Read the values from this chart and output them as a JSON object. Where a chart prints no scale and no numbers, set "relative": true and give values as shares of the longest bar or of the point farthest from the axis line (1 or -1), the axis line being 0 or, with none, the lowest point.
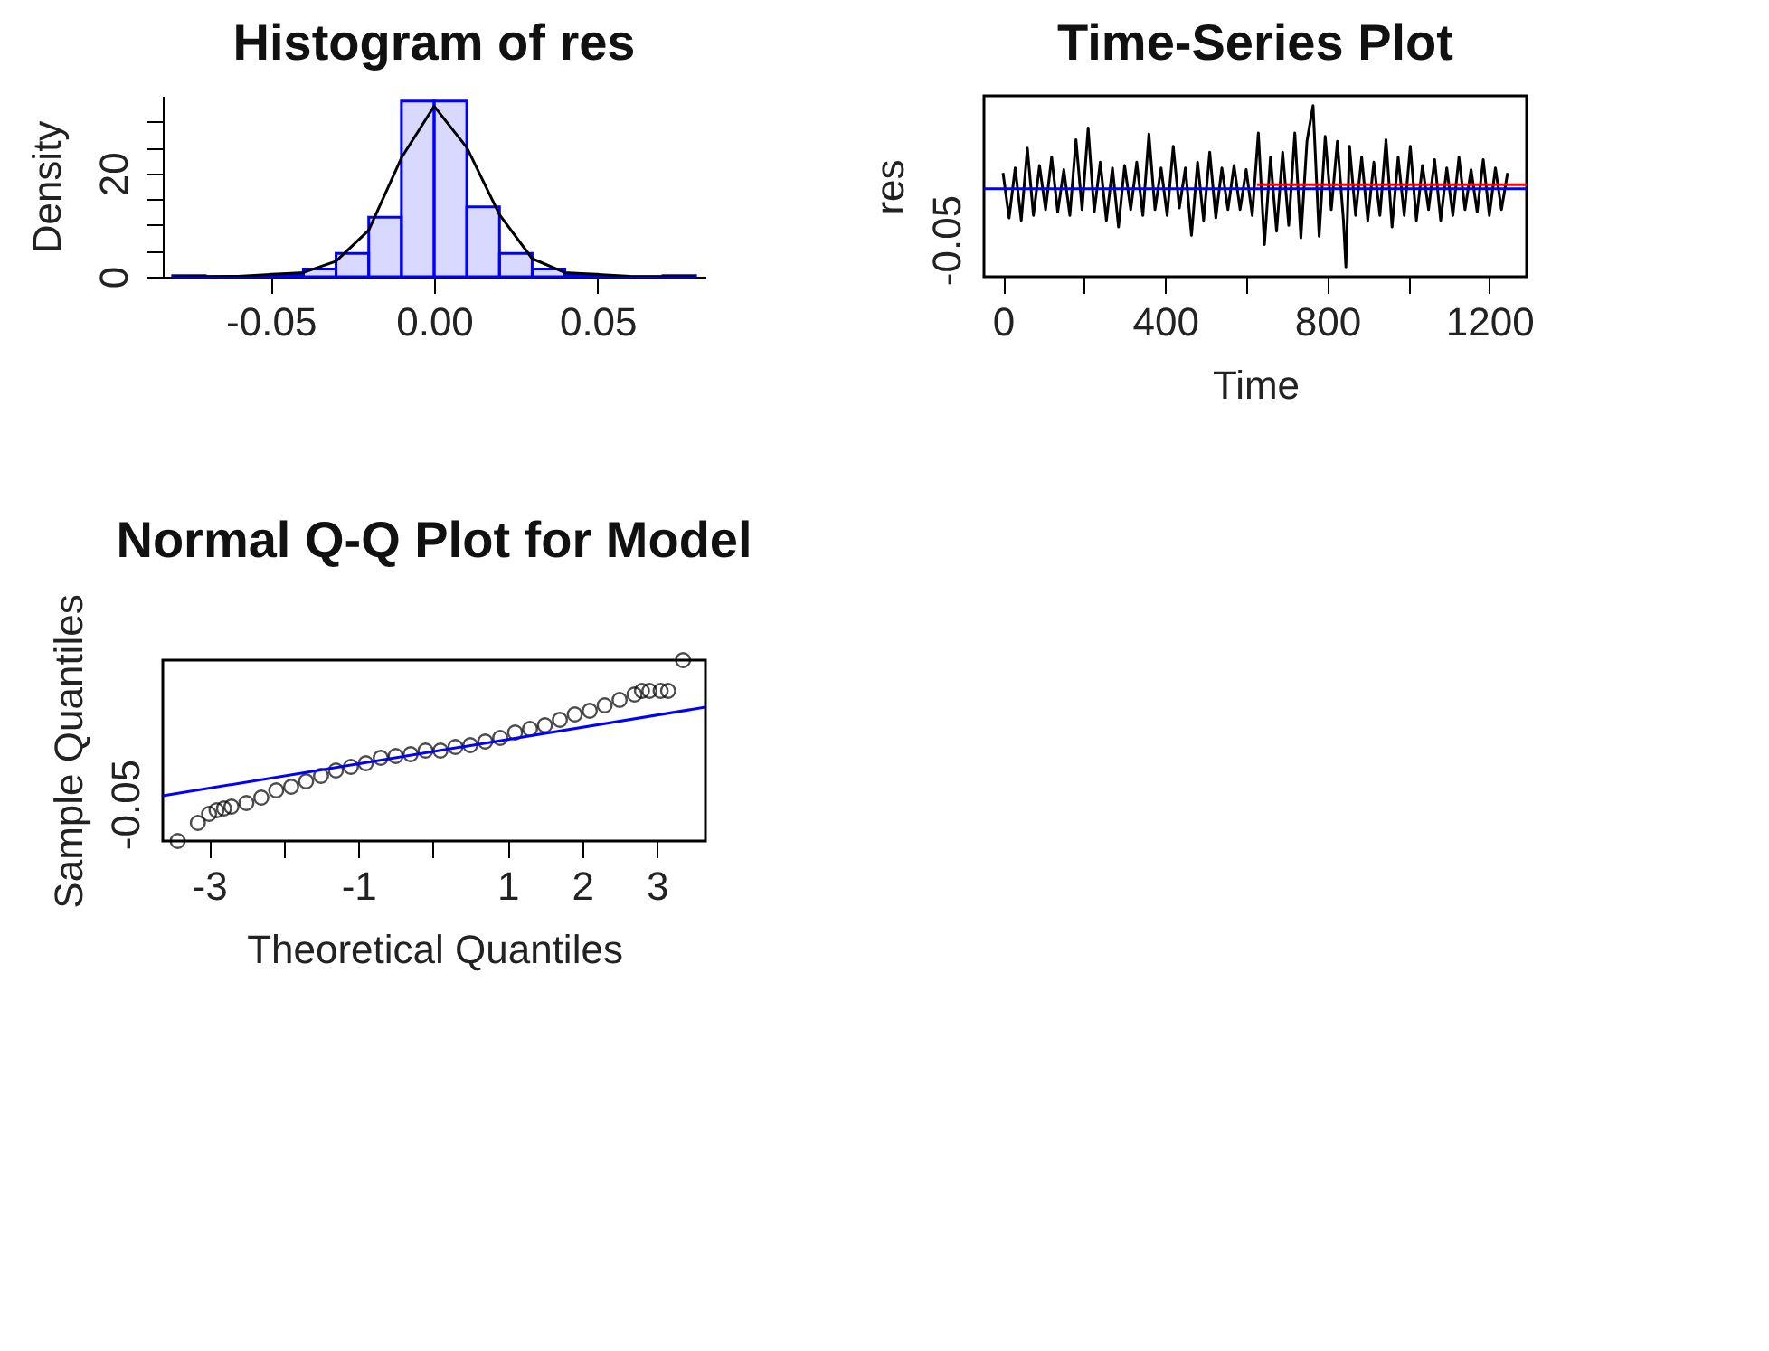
{
  "chart_data": [
    {
      "type": "histogram",
      "title": "Histogram of res",
      "ylabel": "Density",
      "color": "#0000ff",
      "line_style": "solid",
      "bins": [
        -0.08,
        -0.07,
        -0.06,
        -0.05,
        -0.04,
        -0.03,
        -0.02,
        -0.01,
        0,
        0.01,
        0.02,
        0.03,
        0.04,
        0.05,
        0.06,
        0.07,
        0.08
      ],
      "values": [
        0.2,
        0,
        0.1,
        0.5,
        1.5,
        4.5,
        11.5,
        34,
        34,
        13.5,
        4.5,
        1.5,
        0.5,
        0,
        0,
        0.2
      ],
      "series": [
        {
          "type": "line",
          "color": "#000000",
          "x": [
            -0.08,
            -0.06,
            -0.04,
            -0.03,
            -0.02,
            -0.01,
            0,
            0.01,
            0.02,
            0.03,
            0.04,
            0.06,
            0.08
          ],
          "values": [
            0,
            0.1,
            0.8,
            3,
            9,
            23,
            33,
            25,
            12,
            3.5,
            0.8,
            0.1,
            0
          ]
        }
      ],
      "xlim": [
        -0.083,
        0.083
      ],
      "xticks": [
        {
          "value": -0.05,
          "label": "-0.05"
        },
        {
          "value": 0,
          "label": "0.00"
        },
        {
          "value": 0.05,
          "label": "0.05"
        }
      ],
      "ylim": [
        0,
        35
      ],
      "yticks": [
        0,
        {
          "value": 5,
          "label": null
        },
        {
          "value": 10,
          "label": null
        },
        {
          "value": 15,
          "label": null
        },
        20,
        {
          "value": 25,
          "label": null
        },
        {
          "value": 30,
          "label": null
        }
      ],
      "grid": false
    },
    {
      "type": "line",
      "title": "Time-Series Plot",
      "xlabel": "Time",
      "ylabel": "res",
      "line_style": "solid",
      "relative": true,
      "annotations": [
        "-0.05"
      ],
      "series": [
        {
          "color": "#000000",
          "x": [
            0,
            15,
            30,
            45,
            60,
            75,
            90,
            105,
            120,
            135,
            150,
            165,
            180,
            195,
            210,
            225,
            240,
            255,
            270,
            285,
            300,
            315,
            330,
            345,
            360,
            375,
            390,
            405,
            420,
            435,
            450,
            465,
            480,
            495,
            510,
            525,
            540,
            555,
            570,
            585,
            600,
            615,
            630,
            645,
            660,
            675,
            690,
            705,
            720,
            735,
            750,
            765,
            780,
            795,
            810,
            825,
            840,
            846,
            855,
            870,
            885,
            900,
            915,
            930,
            945,
            960,
            975,
            990,
            1005,
            1020,
            1035,
            1050,
            1065,
            1080,
            1095,
            1110,
            1125,
            1140,
            1155,
            1170,
            1185,
            1200,
            1215,
            1230,
            1245
          ],
          "values": [
            0.19,
            -0.35,
            0.25,
            -0.38,
            0.49,
            -0.32,
            0.28,
            -0.25,
            0.38,
            -0.28,
            0.23,
            -0.32,
            0.59,
            -0.25,
            0.73,
            -0.28,
            0.32,
            -0.38,
            0.25,
            -0.46,
            0.28,
            -0.25,
            0.32,
            -0.32,
            0.66,
            -0.25,
            0.25,
            -0.32,
            0.51,
            -0.23,
            0.25,
            -0.56,
            0.32,
            -0.38,
            0.44,
            -0.35,
            0.25,
            -0.25,
            0.28,
            -0.25,
            0.23,
            -0.32,
            0.67,
            -0.67,
            0.38,
            -0.51,
            0.44,
            -0.44,
            0.67,
            -0.59,
            0.57,
            1,
            -0.57,
            0.63,
            -0.25,
            0.57,
            -0.38,
            -0.94,
            0.51,
            -0.32,
            0.38,
            -0.38,
            0.32,
            -0.32,
            0.59,
            -0.46,
            0.38,
            -0.32,
            0.51,
            -0.38,
            0.28,
            -0.25,
            0.35,
            -0.38,
            0.25,
            -0.32,
            0.38,
            -0.25,
            0.23,
            -0.28,
            0.35,
            -0.32,
            0.25,
            -0.25,
            0.19
          ]
        },
        {
          "color": "#ff0000",
          "x": [
            627,
            1292
          ],
          "values": [
            0.05,
            0.05
          ]
        }
      ],
      "ref_lines": [
        {
          "axis": "y",
          "value": 0,
          "color": "#0000ff"
        }
      ],
      "xlim": [
        -47,
        1292
      ],
      "xticks": [
        0,
        {
          "value": 200,
          "label": null
        },
        400,
        {
          "value": 600,
          "label": null
        },
        800,
        {
          "value": 1000,
          "label": null
        },
        1200
      ],
      "grid": false
    },
    {
      "type": "scatter",
      "title": "Normal Q-Q Plot for Model",
      "xlabel": "Theoretical Quantiles",
      "ylabel": "Sample Quantiles",
      "relative": true,
      "annotations": [
        "-0.05"
      ],
      "series": [
        {
          "color": "#000000",
          "marker": "circle",
          "x": [
            -3.42,
            -3.15,
            -3.0,
            -2.9,
            -2.8,
            -2.7,
            -2.5,
            -2.3,
            -2.1,
            -1.9,
            -1.7,
            -1.5,
            -1.3,
            -1.1,
            -0.9,
            -0.7,
            -0.5,
            -0.3,
            -0.1,
            0.1,
            0.3,
            0.5,
            0.7,
            0.9,
            1.1,
            1.3,
            1.5,
            1.7,
            1.9,
            2.1,
            2.3,
            2.5,
            2.7,
            2.8,
            2.9,
            3.05,
            3.15,
            3.35
          ],
          "values": [
            0,
            0.1,
            0.15,
            0.17,
            0.18,
            0.19,
            0.21,
            0.24,
            0.28,
            0.3,
            0.33,
            0.36,
            0.39,
            0.41,
            0.43,
            0.46,
            0.47,
            0.48,
            0.5,
            0.5,
            0.52,
            0.53,
            0.55,
            0.57,
            0.6,
            0.62,
            0.64,
            0.67,
            0.7,
            0.72,
            0.75,
            0.78,
            0.81,
            0.83,
            0.83,
            0.83,
            0.83,
            1
          ]
        },
        {
          "type": "line",
          "color": "#0000ff",
          "x": [
            -3.62,
            3.65
          ],
          "values": [
            0.25,
            0.74
          ]
        }
      ],
      "xlim": [
        -3.62,
        3.65
      ],
      "xticks": [
        -3,
        {
          "value": -2,
          "label": null
        },
        -1,
        {
          "value": 0,
          "label": null
        },
        1,
        2,
        3
      ],
      "grid": false
    }
  ]
}
